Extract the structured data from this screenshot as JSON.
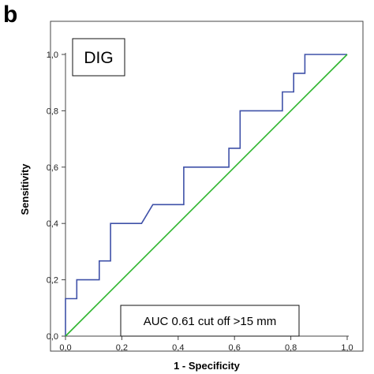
{
  "panel_label": "b",
  "chart_data": {
    "type": "line",
    "title": "DIG",
    "annotation": "AUC 0.61 cut off >15 mm",
    "xlabel": "1 - Specificity",
    "ylabel": "Sensitivity",
    "xlim": [
      0,
      1
    ],
    "ylim": [
      0,
      1
    ],
    "x_tick_labels": [
      "0,0",
      "0,2",
      "0,4",
      "0,6",
      "0,8",
      "1,0"
    ],
    "y_tick_labels": [
      "0,0",
      "0,2",
      "0,4",
      "0,6",
      "0,8",
      "1,0"
    ],
    "grid": false,
    "legend": "none",
    "series": [
      {
        "color": "#3f51a8",
        "x": [
          0.0,
          0.0,
          0.04,
          0.04,
          0.12,
          0.12,
          0.16,
          0.16,
          0.27,
          0.31,
          0.42,
          0.42,
          0.58,
          0.58,
          0.62,
          0.62,
          0.77,
          0.77,
          0.81,
          0.81,
          0.85,
          0.85,
          1.0
        ],
        "y": [
          0.0,
          0.133,
          0.133,
          0.2,
          0.2,
          0.267,
          0.267,
          0.4,
          0.4,
          0.467,
          0.467,
          0.6,
          0.6,
          0.667,
          0.667,
          0.8,
          0.8,
          0.867,
          0.867,
          0.933,
          0.933,
          1.0,
          1.0
        ]
      },
      {
        "color": "#2db52d",
        "x": [
          0,
          1
        ],
        "y": [
          0,
          1
        ]
      }
    ]
  }
}
